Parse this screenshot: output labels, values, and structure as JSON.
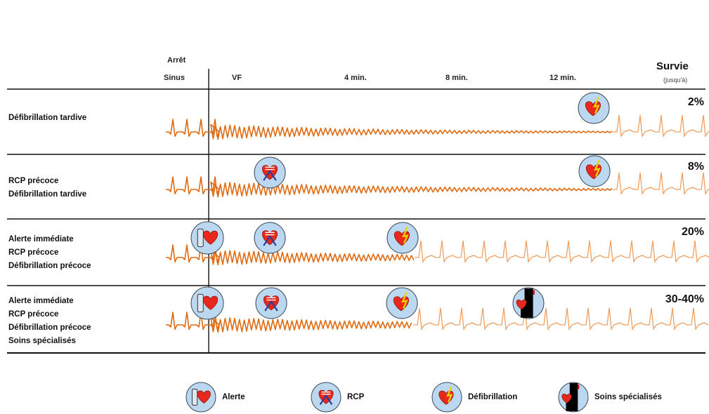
{
  "header": {
    "arret": "Arrêt",
    "sinus": "Sinus",
    "vf": "VF",
    "t4": "4 min.",
    "t8": "8 min.",
    "t12": "12 min.",
    "survie": "Survie",
    "jusqua": "(jusqu'à)"
  },
  "rows": [
    {
      "lines": [
        "Défibrillation tardive"
      ],
      "survival": "2%"
    },
    {
      "lines": [
        "RCP précoce",
        "Défibrillation tardive"
      ],
      "survival": "8%"
    },
    {
      "lines": [
        "Alerte immédiate",
        "RCP précoce",
        "Défibrillation précoce"
      ],
      "survival": "20%"
    },
    {
      "lines": [
        "Alerte immédiate",
        "RCP  précoce",
        "Défibrillation précoce",
        "Soins spécialisés"
      ],
      "survival": "30-40%"
    }
  ],
  "legend": {
    "alerte": "Alerte",
    "rcp": "RCP",
    "defib": "Défibrillation",
    "soins": "Soins spécialisés"
  },
  "colors": {
    "trace": "#e06a10",
    "trace_light": "#f0a060",
    "icon_bg": "#bcd8f0",
    "heart": "#e8281c",
    "lines": "#111111"
  }
}
